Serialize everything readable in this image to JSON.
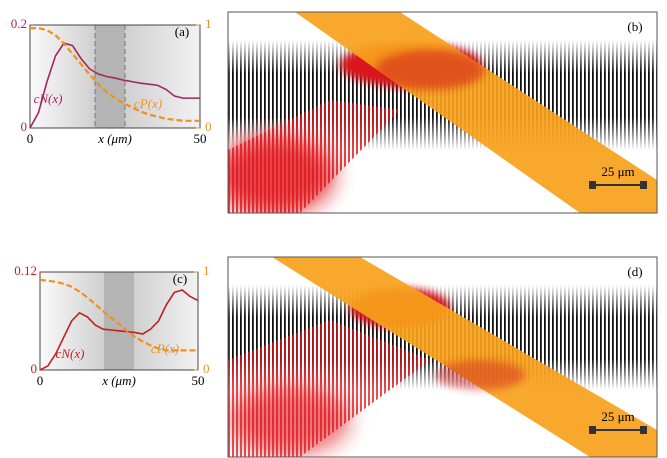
{
  "chart_data": [
    {
      "type": "line",
      "label": "(a)",
      "xlabel": "x (μm)",
      "x": [
        0,
        2.5,
        5,
        7.5,
        10,
        12.5,
        15,
        17.5,
        20,
        22.5,
        25,
        27.5,
        30,
        32.5,
        35,
        37.5,
        40,
        42.5,
        45,
        47.5,
        50
      ],
      "xlim": [
        0,
        50
      ],
      "xticks": [
        0,
        50
      ],
      "ylim": [
        0,
        0.2
      ],
      "yticks": [
        0,
        0.2
      ],
      "y2lim": [
        0,
        1
      ],
      "y2ticks": [
        0,
        1
      ],
      "series": [
        {
          "name": "cN(x)",
          "color": "#a3285a",
          "values": [
            0,
            0.03,
            0.09,
            0.14,
            0.165,
            0.16,
            0.135,
            0.115,
            0.105,
            0.1,
            0.097,
            0.093,
            0.09,
            0.087,
            0.085,
            0.083,
            0.075,
            0.062,
            0.058,
            0.058,
            0.058
          ]
        },
        {
          "name": "cP(x)",
          "color": "#f0901e",
          "axis": "y2",
          "dashed": true,
          "values": [
            0.97,
            0.97,
            0.95,
            0.9,
            0.82,
            0.72,
            0.62,
            0.52,
            0.43,
            0.35,
            0.29,
            0.24,
            0.2,
            0.16,
            0.13,
            0.11,
            0.09,
            0.08,
            0.07,
            0.07,
            0.07
          ]
        }
      ]
    },
    {
      "type": "line",
      "label": "(c)",
      "xlabel": "x (μm)",
      "x": [
        0,
        2.5,
        5,
        7.5,
        10,
        12.5,
        15,
        17.5,
        20,
        22.5,
        25,
        27.5,
        30,
        32.5,
        35,
        37.5,
        40,
        42.5,
        45,
        47.5,
        50
      ],
      "xlim": [
        0,
        50
      ],
      "xticks": [
        0,
        50
      ],
      "ylim": [
        0,
        0.12
      ],
      "yticks": [
        0,
        0.12
      ],
      "y2lim": [
        0,
        1
      ],
      "y2ticks": [
        0,
        1
      ],
      "series": [
        {
          "name": "cN(x)",
          "color": "#c0201d",
          "values": [
            0,
            0.005,
            0.02,
            0.04,
            0.06,
            0.07,
            0.065,
            0.055,
            0.05,
            0.049,
            0.048,
            0.047,
            0.046,
            0.044,
            0.05,
            0.06,
            0.08,
            0.095,
            0.098,
            0.09,
            0.085
          ]
        },
        {
          "name": "cP(x)",
          "color": "#f0901e",
          "axis": "y2",
          "dashed": true,
          "values": [
            0.92,
            0.91,
            0.9,
            0.88,
            0.85,
            0.8,
            0.74,
            0.67,
            0.6,
            0.53,
            0.47,
            0.4,
            0.34,
            0.29,
            0.25,
            0.22,
            0.2,
            0.2,
            0.2,
            0.2,
            0.2
          ]
        }
      ]
    }
  ],
  "images": [
    {
      "label": "(b)",
      "scale_bar": "25 μm"
    },
    {
      "label": "(d)",
      "scale_bar": "25 μm"
    }
  ]
}
